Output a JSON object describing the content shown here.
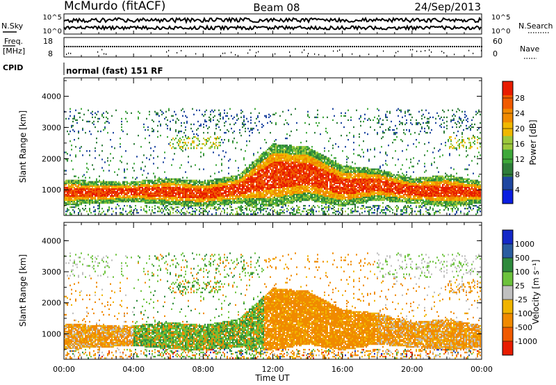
{
  "header": {
    "station": "McMurdo (fitACF)",
    "beam": "Beam 08",
    "date": "24/Sep/2013"
  },
  "summary_panel": {
    "nsky_label": "N.Sky",
    "nsearch_label": "N.Search",
    "freq_label_line1": "Freq.",
    "freq_label_line2": "[MHz]",
    "nave_label": "Nave",
    "cpid_label": "CPID",
    "cpid_value": "normal (fast) 151 RF",
    "noise_axis_left": [
      "10^5",
      "10^0"
    ],
    "noise_axis_right": [
      "10^5",
      "10^0"
    ],
    "freq_ticks": [
      "18",
      "8"
    ],
    "nave_ticks": [
      "60",
      "0"
    ]
  },
  "colors": {
    "power_scale": [
      "#0a1ee0",
      "#1e46a0",
      "#2e7d3a",
      "#3ea83a",
      "#9cc83c",
      "#f0b800",
      "#f08a00",
      "#f05a00",
      "#e81c00"
    ],
    "velocity_scale": [
      "#e81c00",
      "#f05a00",
      "#f08a00",
      "#f0b400",
      "#c0c0c0",
      "#6cc23c",
      "#2e8a3c",
      "#2a5ca0",
      "#1428c8"
    ]
  },
  "chart_data": [
    {
      "type": "heatmap",
      "panel": "power",
      "ylabel": "Slant Range [km]",
      "ylim": [
        180,
        4590
      ],
      "yticks": [
        "1000",
        "2000",
        "3000",
        "4000"
      ],
      "x_ticks": [
        "00:00",
        "04:00",
        "08:00",
        "12:00",
        "16:00",
        "20:00",
        "00:00"
      ],
      "colorbar_label": "Power [dB]",
      "colorbar_ticks": [
        "4",
        "8",
        "12",
        "16",
        "20",
        "24",
        "28"
      ],
      "main_echo_band_km": [
        {
          "time": "00:00",
          "low": 550,
          "high": 1250
        },
        {
          "time": "02:00",
          "low": 600,
          "high": 1200
        },
        {
          "time": "04:00",
          "low": 650,
          "high": 1200
        },
        {
          "time": "06:00",
          "low": 550,
          "high": 1300
        },
        {
          "time": "08:00",
          "low": 500,
          "high": 1200
        },
        {
          "time": "10:00",
          "low": 600,
          "high": 1400
        },
        {
          "time": "12:00",
          "low": 500,
          "high": 2400
        },
        {
          "time": "14:00",
          "low": 700,
          "high": 2300
        },
        {
          "time": "16:00",
          "low": 500,
          "high": 1700
        },
        {
          "time": "18:00",
          "low": 700,
          "high": 1600
        },
        {
          "time": "20:00",
          "low": 600,
          "high": 1300
        },
        {
          "time": "22:00",
          "low": 500,
          "high": 1400
        },
        {
          "time": "24:00",
          "low": 600,
          "high": 1200
        }
      ]
    },
    {
      "type": "heatmap",
      "panel": "velocity",
      "ylabel": "Slant Range [km]",
      "xlabel": "Time UT",
      "ylim": [
        180,
        4590
      ],
      "yticks": [
        "1000",
        "2000",
        "3000",
        "4000"
      ],
      "x_ticks": [
        "00:00",
        "04:00",
        "08:00",
        "12:00",
        "16:00",
        "20:00",
        "00:00"
      ],
      "colorbar_label": "Velocity [m s⁻¹]",
      "colorbar_ticks": [
        "1000",
        "500",
        "100",
        "25",
        "-25",
        "-100",
        "-500",
        "-1000"
      ]
    }
  ]
}
